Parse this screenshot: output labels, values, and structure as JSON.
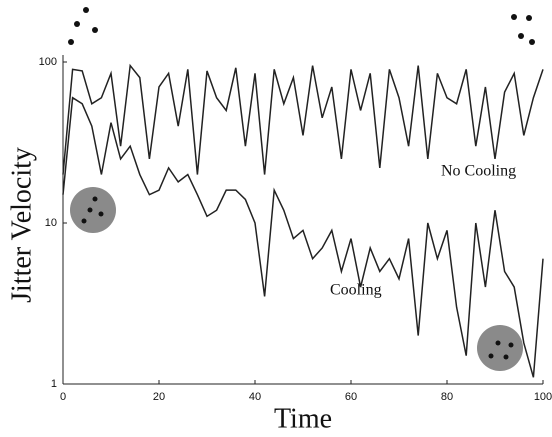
{
  "chart_data": {
    "type": "line",
    "x_label": "Time",
    "y_label": "Jitter Velocity",
    "x": [
      0,
      2,
      4,
      6,
      8,
      10,
      12,
      14,
      16,
      18,
      20,
      22,
      24,
      26,
      28,
      30,
      32,
      34,
      36,
      38,
      40,
      42,
      44,
      46,
      48,
      50,
      52,
      54,
      56,
      58,
      60,
      62,
      64,
      66,
      68,
      70,
      72,
      74,
      76,
      78,
      80,
      82,
      84,
      86,
      88,
      90,
      92,
      94,
      96,
      98,
      100
    ],
    "series": [
      {
        "name": "No Cooling",
        "color": "#222222",
        "values": [
          20,
          90,
          88,
          55,
          60,
          85,
          30,
          95,
          80,
          25,
          70,
          85,
          40,
          90,
          20,
          88,
          60,
          50,
          92,
          30,
          85,
          20,
          90,
          55,
          80,
          35,
          95,
          45,
          70,
          25,
          90,
          50,
          85,
          22,
          90,
          60,
          30,
          95,
          25,
          85,
          60,
          55,
          90,
          30,
          70,
          25,
          65,
          85,
          35,
          60,
          90
        ]
      },
      {
        "name": "Cooling",
        "color": "#222222",
        "values": [
          15,
          60,
          55,
          40,
          20,
          42,
          25,
          30,
          20,
          15,
          16,
          22,
          18,
          20,
          15,
          11,
          12,
          16,
          16,
          14,
          10,
          3.5,
          16,
          12,
          8,
          9,
          6,
          7,
          9,
          5,
          8,
          4,
          7,
          5,
          6,
          4.5,
          8,
          2,
          10,
          6,
          9,
          3,
          1.5,
          10,
          4,
          12,
          5,
          4,
          1.8,
          1.1,
          6
        ]
      }
    ],
    "xlim": [
      0,
      100
    ],
    "xticks": [
      0,
      20,
      40,
      60,
      80,
      100
    ],
    "ylim": [
      1,
      100
    ],
    "yticks": [
      1,
      10,
      100
    ],
    "log_y": true
  }
}
